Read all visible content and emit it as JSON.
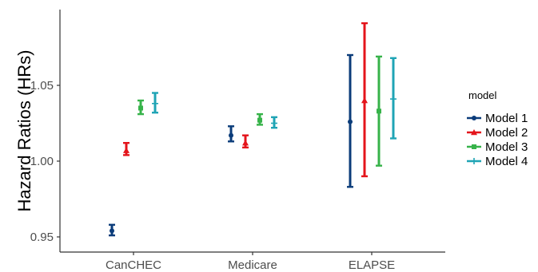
{
  "chart_data": {
    "type": "errorbar",
    "title": "",
    "xlabel": "",
    "ylabel": "Hazard Ratios (HRs)",
    "categories": [
      "CanCHEC",
      "Medicare",
      "ELAPSE"
    ],
    "ylim": [
      0.94,
      1.1
    ],
    "yticks": [
      0.95,
      1.0,
      1.05
    ],
    "ytick_labels": [
      "0.95",
      "1.00",
      "1.05"
    ],
    "grid": false,
    "legend": {
      "title": "model",
      "position": "right"
    },
    "series": [
      {
        "name": "Model 1",
        "color": "#0b3c7a",
        "marker": "circle",
        "points": [
          {
            "category": "CanCHEC",
            "estimate": 0.954,
            "lower": 0.951,
            "upper": 0.958
          },
          {
            "category": "Medicare",
            "estimate": 1.017,
            "lower": 1.013,
            "upper": 1.023
          },
          {
            "category": "ELAPSE",
            "estimate": 1.026,
            "lower": 0.983,
            "upper": 1.07
          }
        ]
      },
      {
        "name": "Model 2",
        "color": "#e4141b",
        "marker": "triangle",
        "points": [
          {
            "category": "CanCHEC",
            "estimate": 1.007,
            "lower": 1.004,
            "upper": 1.012
          },
          {
            "category": "Medicare",
            "estimate": 1.012,
            "lower": 1.009,
            "upper": 1.017
          },
          {
            "category": "ELAPSE",
            "estimate": 1.04,
            "lower": 0.99,
            "upper": 1.091
          }
        ]
      },
      {
        "name": "Model 3",
        "color": "#37b34a",
        "marker": "square",
        "points": [
          {
            "category": "CanCHEC",
            "estimate": 1.035,
            "lower": 1.031,
            "upper": 1.04
          },
          {
            "category": "Medicare",
            "estimate": 1.027,
            "lower": 1.024,
            "upper": 1.031
          },
          {
            "category": "ELAPSE",
            "estimate": 1.033,
            "lower": 0.997,
            "upper": 1.069
          }
        ]
      },
      {
        "name": "Model 4",
        "color": "#1fa4b5",
        "marker": "plus",
        "points": [
          {
            "category": "CanCHEC",
            "estimate": 1.038,
            "lower": 1.032,
            "upper": 1.045
          },
          {
            "category": "Medicare",
            "estimate": 1.025,
            "lower": 1.022,
            "upper": 1.029
          },
          {
            "category": "ELAPSE",
            "estimate": 1.041,
            "lower": 1.015,
            "upper": 1.068
          }
        ]
      }
    ]
  }
}
